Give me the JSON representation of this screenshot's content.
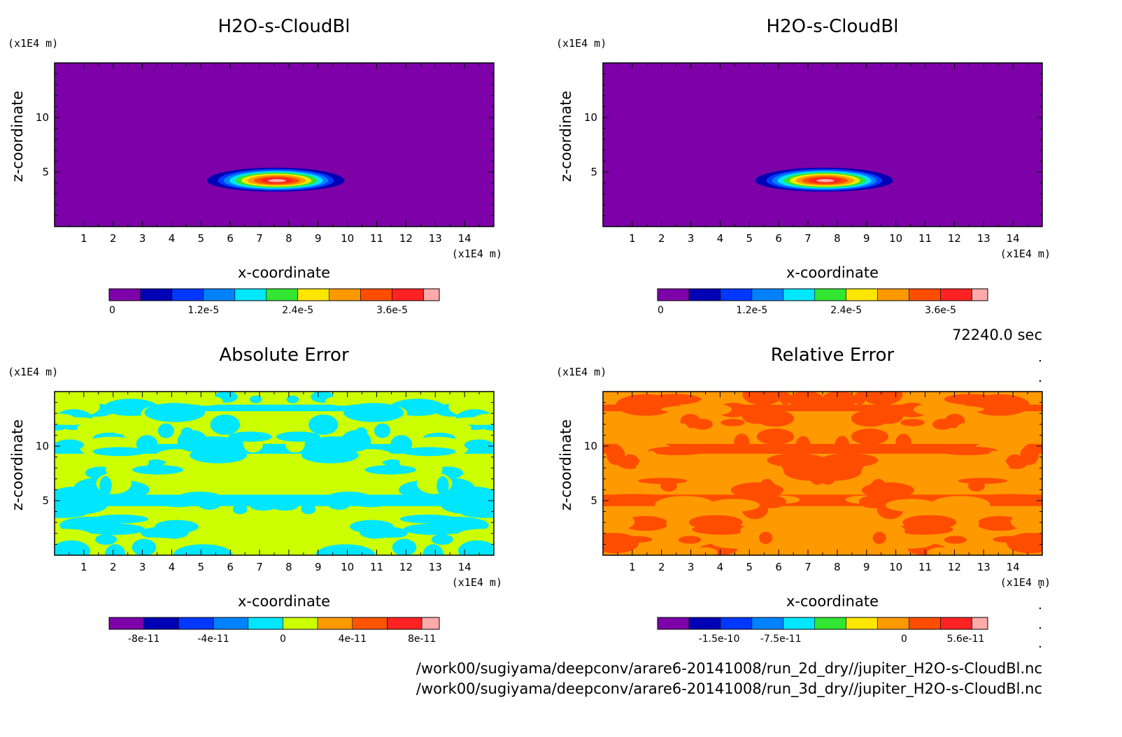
{
  "time_label": "72240.0 sec",
  "footer": {
    "file_a": "/work00/sugiyama/deepconv/arare6-20141008/run_2d_dry//jupiter_H2O-s-CloudBl.nc",
    "file_b": "/work00/sugiyama/deepconv/arare6-20141008/run_3d_dry//jupiter_H2O-s-CloudBl.nc"
  },
  "colors": {
    "levels11": [
      "#7d00a8",
      "#0000b4",
      "#0038ff",
      "#0082ff",
      "#00e6ff",
      "#32e632",
      "#ffe600",
      "#ff9900",
      "#ff4d00",
      "#ff2222",
      "#ffaaaa"
    ],
    "levels10": [
      "#7d00a8",
      "#0000b4",
      "#0038ff",
      "#0082ff",
      "#00e6ff",
      "#ccff00",
      "#ff9900",
      "#ff5500",
      "#ff2222",
      "#ffaaaa"
    ],
    "abs_err": [
      "#ccff00",
      "#00e6ff"
    ],
    "rel_err": [
      "#ff9900",
      "#ff4d00"
    ]
  },
  "chart_data": [
    {
      "type": "heatmap",
      "title": "H2O-s-CloudBl",
      "xlabel": "x-coordinate",
      "ylabel": "z-coordinate",
      "x_unit": "(x1E4 m)",
      "y_unit": "(x1E4 m)",
      "xlim": [
        0,
        15
      ],
      "ylim": [
        0,
        15
      ],
      "xticks": [
        1,
        2,
        3,
        4,
        5,
        6,
        7,
        8,
        9,
        10,
        11,
        12,
        13,
        14
      ],
      "yticks": [
        5,
        10
      ],
      "colorbar": {
        "ticks": [
          "0",
          "1.2e-5",
          "2.4e-5",
          "3.6e-5"
        ],
        "min": 0,
        "max": 4.2e-05,
        "n_levels": 11
      },
      "cloud": {
        "center_x": 7.6,
        "center_z": 4.2,
        "peak": 4.2e-05,
        "base_z": 3.2,
        "top_z": 5.4,
        "x_extent": [
          5.2,
          9.9
        ]
      }
    },
    {
      "type": "heatmap",
      "title": "H2O-s-CloudBl",
      "xlabel": "x-coordinate",
      "ylabel": "z-coordinate",
      "x_unit": "(x1E4 m)",
      "y_unit": "(x1E4 m)",
      "xlim": [
        0,
        15
      ],
      "ylim": [
        0,
        15
      ],
      "xticks": [
        1,
        2,
        3,
        4,
        5,
        6,
        7,
        8,
        9,
        10,
        11,
        12,
        13,
        14
      ],
      "yticks": [
        5,
        10
      ],
      "colorbar": {
        "ticks": [
          "0",
          "1.2e-5",
          "2.4e-5",
          "3.6e-5"
        ],
        "min": 0,
        "max": 4.2e-05,
        "n_levels": 11
      },
      "cloud": {
        "center_x": 7.6,
        "center_z": 4.2,
        "peak": 4.2e-05,
        "base_z": 3.2,
        "top_z": 5.4,
        "x_extent": [
          5.2,
          9.9
        ]
      }
    },
    {
      "type": "heatmap",
      "title": "Absolute Error",
      "xlabel": "x-coordinate",
      "ylabel": "z-coordinate",
      "x_unit": "(x1E4 m)",
      "y_unit": "(x1E4 m)",
      "xlim": [
        0,
        15
      ],
      "ylim": [
        0,
        15
      ],
      "xticks": [
        1,
        2,
        3,
        4,
        5,
        6,
        7,
        8,
        9,
        10,
        11,
        12,
        13,
        14
      ],
      "yticks": [
        5,
        10
      ],
      "colorbar": {
        "ticks": [
          "-8e-11",
          "-4e-11",
          "0",
          "4e-11",
          "8e-11"
        ],
        "n_levels": 10
      },
      "field_colors": [
        "#ccff00",
        "#00e6ff"
      ]
    },
    {
      "type": "heatmap",
      "title": "Relative Error",
      "xlabel": "x-coordinate",
      "ylabel": "z-coordinate",
      "x_unit": "(x1E4 m)",
      "y_unit": "(x1E4 m)",
      "xlim": [
        0,
        15
      ],
      "ylim": [
        0,
        15
      ],
      "xticks": [
        1,
        2,
        3,
        4,
        5,
        6,
        7,
        8,
        9,
        10,
        11,
        12,
        13,
        14
      ],
      "yticks": [
        5,
        10
      ],
      "colorbar": {
        "ticks": [
          "-1.5e-10",
          "-7.5e-11",
          "0",
          "5.6e-11"
        ],
        "n_levels": 11
      },
      "field_colors": [
        "#ff9900",
        "#ff4d00"
      ]
    }
  ]
}
